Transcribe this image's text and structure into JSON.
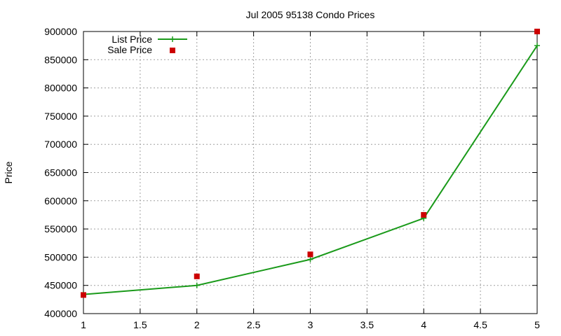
{
  "chart_data": {
    "type": "line",
    "title": "Jul 2005 95138 Condo Prices",
    "xlabel": "",
    "ylabel": "Price",
    "xlim": [
      1,
      5
    ],
    "ylim": [
      400000,
      900000
    ],
    "xticks": [
      "1",
      "1.5",
      "2",
      "2.5",
      "3",
      "3.5",
      "4",
      "4.5",
      "5"
    ],
    "yticks": [
      "400000",
      "450000",
      "500000",
      "550000",
      "600000",
      "650000",
      "700000",
      "750000",
      "800000",
      "850000",
      "900000"
    ],
    "grid": true,
    "legend_position": "top-left",
    "series": [
      {
        "name": "List Price",
        "style": "line-with-plus-markers",
        "color": "#1a9a1a",
        "x": [
          1,
          2,
          3,
          4,
          5
        ],
        "values": [
          434000,
          450000,
          496000,
          569000,
          875000
        ]
      },
      {
        "name": "Sale Price",
        "style": "square-markers",
        "color": "#cc0000",
        "x": [
          1,
          2,
          3,
          4,
          5
        ],
        "values": [
          433000,
          466000,
          505000,
          575000,
          900000
        ]
      }
    ]
  }
}
